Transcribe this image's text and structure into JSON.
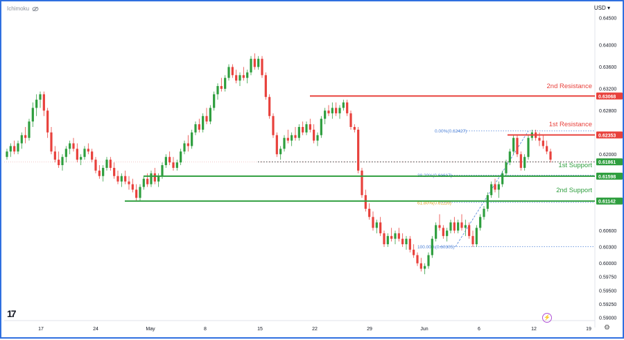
{
  "header": {
    "indicator_label": "Ichimoku",
    "eye_icon": "eye-off-icon",
    "currency": "USD"
  },
  "footer": {
    "logo_text": "17",
    "bolt_icon": "lightning-icon",
    "settings_icon": "gear-icon"
  },
  "chart_data": {
    "type": "candlestick",
    "title": "",
    "xlabel": "",
    "ylabel": "",
    "ylim": [
      0.5895,
      0.6465
    ],
    "y_ticks": [
      "0.64500",
      "0.64000",
      "0.63600",
      "0.63200",
      "0.62800",
      "0.62000",
      "0.60600",
      "0.60300",
      "0.60000",
      "0.59750",
      "0.59500",
      "0.59250",
      "0.59000"
    ],
    "x_ticks": [
      "17",
      "24",
      "May",
      "8",
      "15",
      "22",
      "29",
      "Jun",
      "6",
      "12",
      "19",
      "26"
    ],
    "current_price": "0.61861",
    "levels": [
      {
        "name": "2nd Resistance",
        "value": 0.63068,
        "label": "0.63068",
        "color": "#e8413c"
      },
      {
        "name": "1st Resistance",
        "value": 0.62353,
        "label": "0.62353",
        "color": "#e8413c"
      },
      {
        "name": "1st Support",
        "value": 0.61598,
        "label": "0.61598",
        "color": "#2e9e3e"
      },
      {
        "name": "2nd Support",
        "value": 0.61142,
        "label": "0.61142",
        "color": "#2e9e3e"
      }
    ],
    "fibonacci": [
      {
        "label": "0.00%(0.62427)",
        "value": 0.62427
      },
      {
        "label": "38.20%(0.61617)",
        "value": 0.61617
      },
      {
        "label": "61.80%(0.61116)",
        "value": 0.61116
      },
      {
        "label": "100.00%(0.60305)",
        "value": 0.60305
      }
    ],
    "series": [
      [
        0.6195,
        0.621,
        0.619,
        0.6205
      ],
      [
        0.6205,
        0.622,
        0.6195,
        0.6215
      ],
      [
        0.6215,
        0.6225,
        0.62,
        0.6205
      ],
      [
        0.6205,
        0.6225,
        0.62,
        0.622
      ],
      [
        0.622,
        0.624,
        0.621,
        0.6235
      ],
      [
        0.6235,
        0.625,
        0.622,
        0.623
      ],
      [
        0.623,
        0.6265,
        0.6225,
        0.626
      ],
      [
        0.626,
        0.6295,
        0.625,
        0.6285
      ],
      [
        0.6285,
        0.631,
        0.627,
        0.63
      ],
      [
        0.63,
        0.6315,
        0.6285,
        0.631
      ],
      [
        0.631,
        0.6315,
        0.627,
        0.628
      ],
      [
        0.628,
        0.6285,
        0.623,
        0.624
      ],
      [
        0.624,
        0.625,
        0.62,
        0.6205
      ],
      [
        0.6205,
        0.6215,
        0.6185,
        0.619
      ],
      [
        0.619,
        0.6205,
        0.6175,
        0.618
      ],
      [
        0.618,
        0.62,
        0.617,
        0.6195
      ],
      [
        0.6195,
        0.6215,
        0.6185,
        0.621
      ],
      [
        0.621,
        0.6225,
        0.62,
        0.622
      ],
      [
        0.622,
        0.623,
        0.6205,
        0.621
      ],
      [
        0.621,
        0.622,
        0.6185,
        0.619
      ],
      [
        0.619,
        0.62,
        0.618,
        0.6195
      ],
      [
        0.6195,
        0.6215,
        0.619,
        0.621
      ],
      [
        0.621,
        0.622,
        0.62,
        0.6205
      ],
      [
        0.6205,
        0.621,
        0.6185,
        0.619
      ],
      [
        0.619,
        0.6195,
        0.6165,
        0.617
      ],
      [
        0.617,
        0.618,
        0.6155,
        0.616
      ],
      [
        0.616,
        0.618,
        0.615,
        0.6175
      ],
      [
        0.6175,
        0.6195,
        0.617,
        0.619
      ],
      [
        0.619,
        0.6195,
        0.617,
        0.6175
      ],
      [
        0.6175,
        0.6185,
        0.6155,
        0.616
      ],
      [
        0.616,
        0.617,
        0.6145,
        0.615
      ],
      [
        0.615,
        0.6165,
        0.614,
        0.616
      ],
      [
        0.616,
        0.617,
        0.6145,
        0.615
      ],
      [
        0.615,
        0.616,
        0.6135,
        0.6145
      ],
      [
        0.6145,
        0.6155,
        0.613,
        0.6135
      ],
      [
        0.6135,
        0.6145,
        0.6115,
        0.612
      ],
      [
        0.612,
        0.6145,
        0.6115,
        0.614
      ],
      [
        0.614,
        0.616,
        0.6135,
        0.6155
      ],
      [
        0.6155,
        0.6165,
        0.614,
        0.6145
      ],
      [
        0.6145,
        0.617,
        0.614,
        0.6165
      ],
      [
        0.6165,
        0.6175,
        0.6145,
        0.615
      ],
      [
        0.615,
        0.6165,
        0.614,
        0.616
      ],
      [
        0.616,
        0.6185,
        0.6155,
        0.618
      ],
      [
        0.618,
        0.62,
        0.6175,
        0.6195
      ],
      [
        0.6195,
        0.6205,
        0.618,
        0.6185
      ],
      [
        0.6185,
        0.6195,
        0.617,
        0.6175
      ],
      [
        0.6175,
        0.619,
        0.617,
        0.6185
      ],
      [
        0.6185,
        0.621,
        0.618,
        0.6205
      ],
      [
        0.6205,
        0.6225,
        0.62,
        0.622
      ],
      [
        0.622,
        0.6235,
        0.6205,
        0.6215
      ],
      [
        0.6215,
        0.6245,
        0.621,
        0.624
      ],
      [
        0.624,
        0.626,
        0.6235,
        0.6255
      ],
      [
        0.6255,
        0.6265,
        0.624,
        0.6245
      ],
      [
        0.6245,
        0.6275,
        0.624,
        0.627
      ],
      [
        0.627,
        0.6285,
        0.6255,
        0.626
      ],
      [
        0.626,
        0.629,
        0.6255,
        0.6285
      ],
      [
        0.6285,
        0.6315,
        0.628,
        0.631
      ],
      [
        0.631,
        0.633,
        0.63,
        0.6325
      ],
      [
        0.6325,
        0.634,
        0.6315,
        0.632
      ],
      [
        0.632,
        0.6345,
        0.6315,
        0.634
      ],
      [
        0.634,
        0.6365,
        0.6335,
        0.636
      ],
      [
        0.636,
        0.6365,
        0.634,
        0.6345
      ],
      [
        0.6345,
        0.6355,
        0.633,
        0.6335
      ],
      [
        0.6335,
        0.635,
        0.6325,
        0.6345
      ],
      [
        0.6345,
        0.636,
        0.6335,
        0.634
      ],
      [
        0.634,
        0.6355,
        0.633,
        0.635
      ],
      [
        0.635,
        0.638,
        0.6345,
        0.6375
      ],
      [
        0.6375,
        0.6385,
        0.6355,
        0.636
      ],
      [
        0.636,
        0.638,
        0.6355,
        0.6375
      ],
      [
        0.6375,
        0.638,
        0.634,
        0.6345
      ],
      [
        0.6345,
        0.635,
        0.63,
        0.6305
      ],
      [
        0.6305,
        0.631,
        0.6265,
        0.627
      ],
      [
        0.627,
        0.6275,
        0.623,
        0.6235
      ],
      [
        0.6235,
        0.624,
        0.6195,
        0.62
      ],
      [
        0.62,
        0.6215,
        0.619,
        0.621
      ],
      [
        0.621,
        0.6235,
        0.6205,
        0.623
      ],
      [
        0.623,
        0.6245,
        0.622,
        0.6225
      ],
      [
        0.6225,
        0.624,
        0.6215,
        0.6235
      ],
      [
        0.6235,
        0.625,
        0.6225,
        0.623
      ],
      [
        0.623,
        0.6255,
        0.6225,
        0.625
      ],
      [
        0.625,
        0.626,
        0.6235,
        0.624
      ],
      [
        0.624,
        0.626,
        0.6235,
        0.6255
      ],
      [
        0.6255,
        0.6265,
        0.624,
        0.6245
      ],
      [
        0.6245,
        0.6255,
        0.622,
        0.6225
      ],
      [
        0.6225,
        0.624,
        0.6215,
        0.6235
      ],
      [
        0.6235,
        0.627,
        0.623,
        0.6265
      ],
      [
        0.6265,
        0.6285,
        0.6255,
        0.628
      ],
      [
        0.628,
        0.629,
        0.627,
        0.6275
      ],
      [
        0.6275,
        0.6295,
        0.6265,
        0.6285
      ],
      [
        0.6285,
        0.6295,
        0.627,
        0.6275
      ],
      [
        0.6275,
        0.629,
        0.6265,
        0.6285
      ],
      [
        0.6285,
        0.63,
        0.628,
        0.6295
      ],
      [
        0.6295,
        0.63,
        0.627,
        0.6275
      ],
      [
        0.6275,
        0.628,
        0.6245,
        0.625
      ],
      [
        0.625,
        0.6255,
        0.624,
        0.6245
      ],
      [
        0.6245,
        0.625,
        0.6165,
        0.617
      ],
      [
        0.617,
        0.6175,
        0.612,
        0.6125
      ],
      [
        0.6125,
        0.6135,
        0.6095,
        0.61
      ],
      [
        0.61,
        0.611,
        0.608,
        0.6085
      ],
      [
        0.6085,
        0.6095,
        0.606,
        0.6065
      ],
      [
        0.6065,
        0.608,
        0.6055,
        0.6075
      ],
      [
        0.6075,
        0.6085,
        0.605,
        0.6055
      ],
      [
        0.6055,
        0.606,
        0.603,
        0.6035
      ],
      [
        0.6035,
        0.6055,
        0.603,
        0.605
      ],
      [
        0.605,
        0.6065,
        0.604,
        0.6045
      ],
      [
        0.6045,
        0.606,
        0.6035,
        0.6055
      ],
      [
        0.6055,
        0.6065,
        0.604,
        0.6045
      ],
      [
        0.6045,
        0.6055,
        0.603,
        0.6035
      ],
      [
        0.6035,
        0.605,
        0.6025,
        0.6045
      ],
      [
        0.6045,
        0.605,
        0.602,
        0.6025
      ],
      [
        0.6025,
        0.6035,
        0.601,
        0.6015
      ],
      [
        0.6015,
        0.602,
        0.5995,
        0.6
      ],
      [
        0.6,
        0.601,
        0.5985,
        0.599
      ],
      [
        0.599,
        0.6,
        0.598,
        0.5995
      ],
      [
        0.5995,
        0.602,
        0.599,
        0.6015
      ],
      [
        0.6015,
        0.605,
        0.601,
        0.6045
      ],
      [
        0.6045,
        0.6075,
        0.604,
        0.607
      ],
      [
        0.607,
        0.609,
        0.606,
        0.6065
      ],
      [
        0.6065,
        0.607,
        0.6045,
        0.605
      ],
      [
        0.605,
        0.6065,
        0.604,
        0.606
      ],
      [
        0.606,
        0.608,
        0.6055,
        0.6075
      ],
      [
        0.6075,
        0.6085,
        0.6055,
        0.606
      ],
      [
        0.606,
        0.608,
        0.6055,
        0.6075
      ],
      [
        0.6075,
        0.609,
        0.606,
        0.6065
      ],
      [
        0.6065,
        0.608,
        0.605,
        0.607
      ],
      [
        0.607,
        0.6075,
        0.6045,
        0.605
      ],
      [
        0.605,
        0.606,
        0.603,
        0.6035
      ],
      [
        0.6035,
        0.607,
        0.603,
        0.6065
      ],
      [
        0.6065,
        0.609,
        0.606,
        0.6085
      ],
      [
        0.6085,
        0.6105,
        0.608,
        0.61
      ],
      [
        0.61,
        0.613,
        0.6095,
        0.6125
      ],
      [
        0.6125,
        0.615,
        0.612,
        0.6145
      ],
      [
        0.6145,
        0.6155,
        0.613,
        0.6135
      ],
      [
        0.6135,
        0.615,
        0.612,
        0.6145
      ],
      [
        0.6145,
        0.617,
        0.614,
        0.6165
      ],
      [
        0.6165,
        0.619,
        0.616,
        0.6185
      ],
      [
        0.6185,
        0.621,
        0.618,
        0.6205
      ],
      [
        0.6205,
        0.6235,
        0.62,
        0.623
      ],
      [
        0.623,
        0.6235,
        0.6195,
        0.62
      ],
      [
        0.62,
        0.6205,
        0.617,
        0.6175
      ],
      [
        0.6175,
        0.62,
        0.617,
        0.6195
      ],
      [
        0.6195,
        0.6235,
        0.619,
        0.623
      ],
      [
        0.623,
        0.6245,
        0.6225,
        0.624
      ],
      [
        0.624,
        0.6245,
        0.6225,
        0.623
      ],
      [
        0.623,
        0.624,
        0.6215,
        0.6225
      ],
      [
        0.6225,
        0.6235,
        0.621,
        0.6215
      ],
      [
        0.6215,
        0.6225,
        0.62,
        0.6205
      ],
      [
        0.6205,
        0.621,
        0.6185,
        0.619
      ]
    ]
  }
}
